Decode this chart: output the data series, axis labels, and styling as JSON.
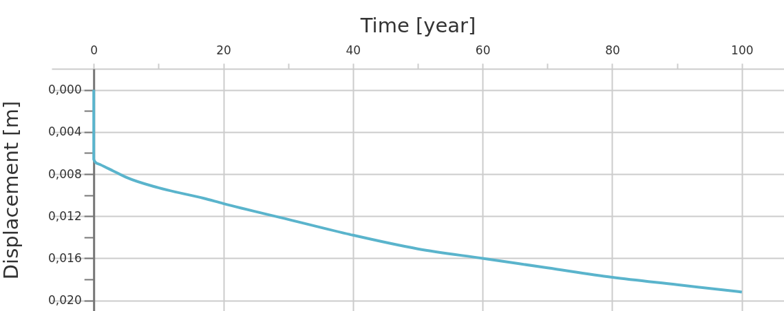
{
  "chart_data": {
    "type": "line",
    "xlabel": "Time [year]",
    "ylabel": "Displacement [m]",
    "x": [
      0,
      0,
      0.3,
      1,
      3,
      5,
      10,
      17,
      20,
      30,
      40,
      50,
      60,
      70,
      80,
      90,
      100
    ],
    "series": [
      {
        "color": "#5ab4cc",
        "values": [
          0,
          0.0066,
          0.0069,
          0.0071,
          0.0077,
          0.0083,
          0.0093,
          0.0103,
          0.0108,
          0.0123,
          0.0138,
          0.0151,
          0.016,
          0.0169,
          0.0178,
          0.0185,
          0.0192
        ]
      }
    ],
    "xlim": [
      -6.5,
      106.5
    ],
    "xticks": [
      0,
      {
        "value": 10,
        "label": null
      },
      20,
      {
        "value": 30,
        "label": null
      },
      40,
      {
        "value": 50,
        "label": null
      },
      60,
      {
        "value": 70,
        "label": null
      },
      80,
      {
        "value": 90,
        "label": null
      },
      100
    ],
    "ylim": [
      0.021,
      -0.002
    ],
    "yticks": [
      {
        "value": 0,
        "label": "0,000"
      },
      {
        "value": 0.002,
        "label": null
      },
      {
        "value": 0.004,
        "label": "0,004"
      },
      {
        "value": 0.006,
        "label": null
      },
      {
        "value": 0.008,
        "label": "0,008"
      },
      {
        "value": 0.01,
        "label": null
      },
      {
        "value": 0.012,
        "label": "0,012"
      },
      {
        "value": 0.014,
        "label": null
      },
      {
        "value": 0.016,
        "label": "0,016"
      },
      {
        "value": 0.018,
        "label": null
      },
      {
        "value": 0.02,
        "label": "0,020"
      }
    ],
    "grid": true,
    "marker": "none",
    "line_style": "solid"
  }
}
